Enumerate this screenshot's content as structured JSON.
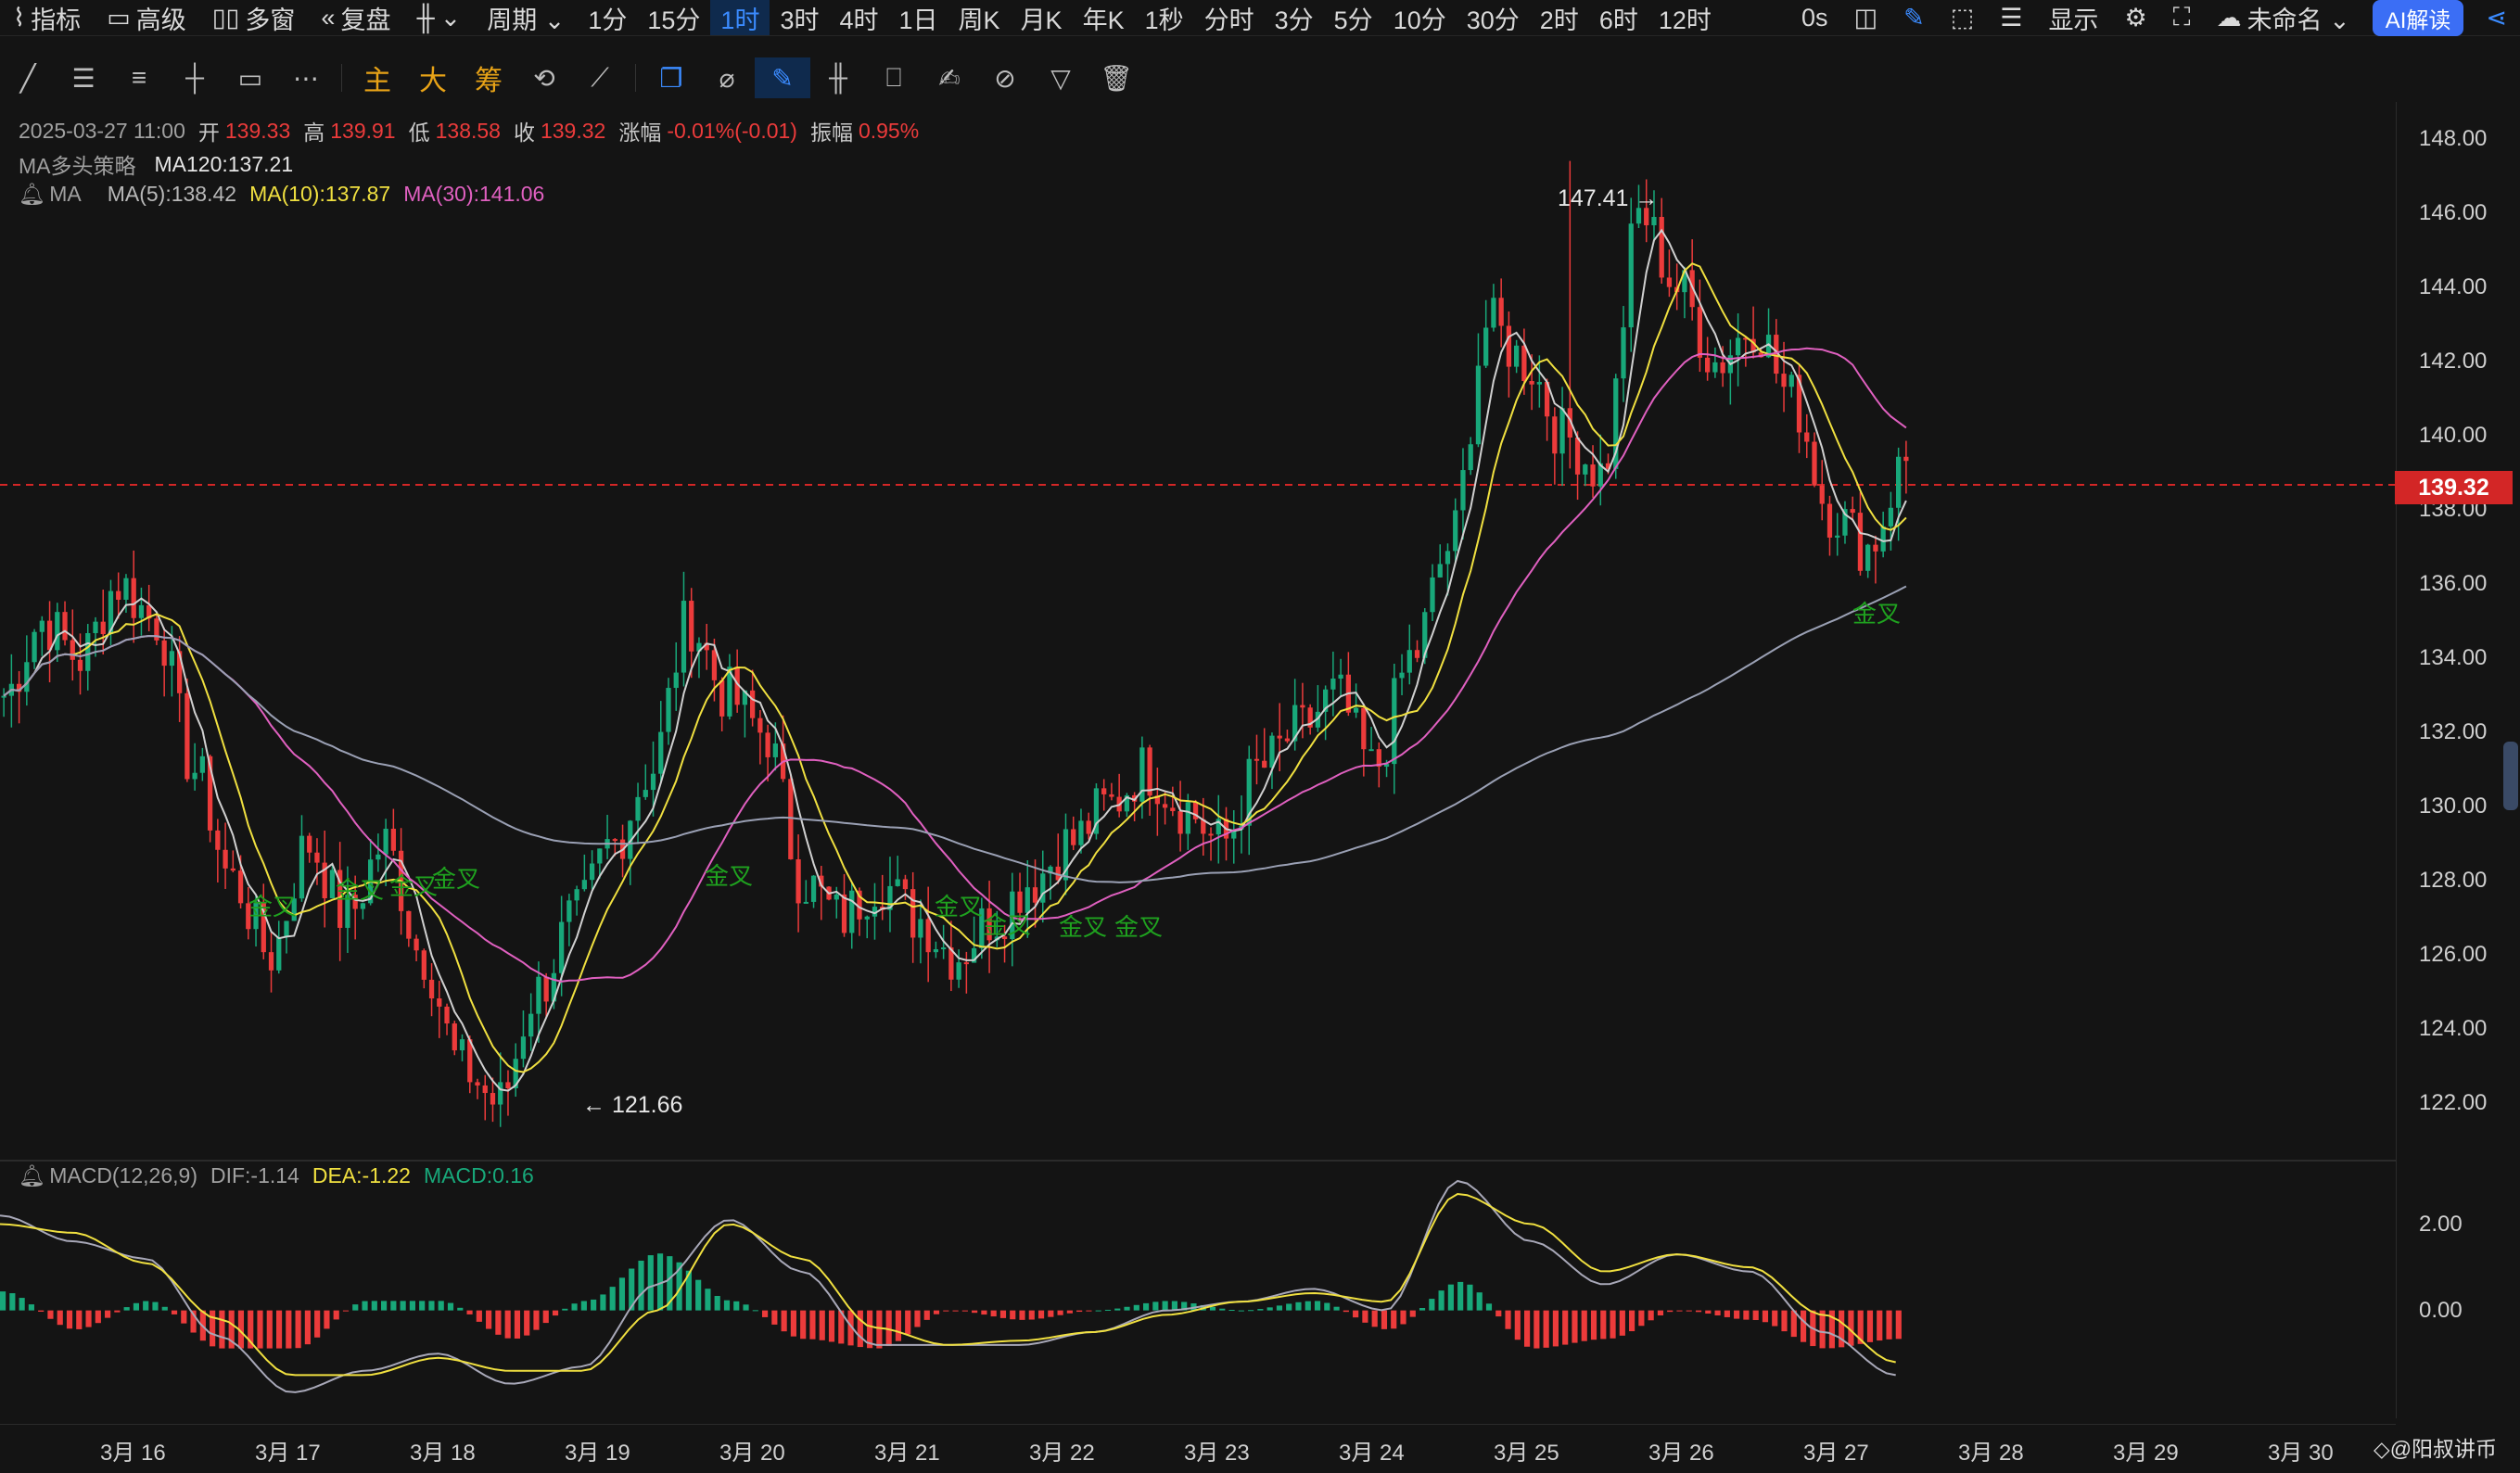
{
  "topbar": {
    "items": [
      {
        "icon": "indicator-icon",
        "glyph": "⌇",
        "label": "指标"
      },
      {
        "icon": "advanced-icon",
        "glyph": "▭",
        "label": "高级"
      },
      {
        "icon": "multi-window-icon",
        "glyph": "▯▯",
        "label": "多窗"
      },
      {
        "icon": "replay-icon",
        "glyph": "«",
        "label": "复盘"
      },
      {
        "icon": "candle-type-icon",
        "glyph": "╫",
        "label": "⌄"
      },
      {
        "icon": "period-icon",
        "glyph": "",
        "label": "周期 ⌄"
      }
    ],
    "periods": [
      "1分",
      "15分",
      "1时",
      "3时",
      "4时",
      "1日",
      "周K",
      "月K",
      "年K",
      "1秒",
      "分时",
      "3分",
      "5分",
      "10分",
      "30分",
      "2时",
      "6时",
      "12时"
    ],
    "active_period": "1时",
    "right": {
      "timer": "0s",
      "display_label": "显示",
      "layout_name": "未命名 ⌄",
      "ai_label": "AI解读"
    }
  },
  "legend": {
    "ohlc": {
      "date": "2025-03-27 11:00",
      "open_label": "开",
      "open": "139.33",
      "high_label": "高",
      "high": "139.91",
      "low_label": "低",
      "low": "138.58",
      "close_label": "收",
      "close": "139.32",
      "change_label": "涨幅",
      "change": "-0.01%(-0.01)",
      "amp_label": "振幅",
      "amp": "0.95%"
    },
    "strategy": {
      "name": "MA多头策略",
      "ma120": "MA120:137.21"
    },
    "ma": {
      "name": "MA",
      "ma5": "MA(5):138.42",
      "ma10": "MA(10):137.87",
      "ma30": "MA(30):141.06"
    },
    "macd": {
      "name": "MACD(12,26,9)",
      "dif": "DIF:-1.14",
      "dea": "DEA:-1.22",
      "macd": "MACD:0.16"
    }
  },
  "colors": {
    "up": "#ec3b3b",
    "down": "#18a87a",
    "ma5": "#d0d0d0",
    "ma10": "#f0e040",
    "ma30": "#e060c0",
    "ma120": "#9aa0b4",
    "accent": "#3b8bff",
    "price_tag": "#d32626",
    "cross": "#1fa21f"
  },
  "price_axis": {
    "labels": [
      "148.00",
      "146.00",
      "144.00",
      "142.00",
      "140.00",
      "138.00",
      "136.00",
      "134.00",
      "132.00",
      "130.00",
      "128.00",
      "126.00",
      "124.00",
      "122.00"
    ],
    "current": "139.32"
  },
  "macd_axis": {
    "labels": [
      "2.00",
      "0.00"
    ]
  },
  "date_axis": {
    "labels": [
      "3月 16",
      "3月 17",
      "3月 18",
      "3月 19",
      "3月 20",
      "3月 21",
      "3月 22",
      "3月 23",
      "3月 24",
      "3月 25",
      "3月 26",
      "3月 27",
      "3月 28",
      "3月 29",
      "3月 30"
    ]
  },
  "annotations": {
    "high": "147.41 →",
    "low": "← 121.66"
  },
  "crosses": {
    "label": "金叉"
  },
  "watermark": "◇@阳叔讲币",
  "chart_data": {
    "type": "candlestick",
    "timeframe": "1h",
    "ylim": [
      121,
      149
    ],
    "macd_ylim": [
      -2.5,
      3.3
    ],
    "price_anchors": [
      133,
      135,
      134,
      136,
      135,
      131,
      128,
      126,
      129,
      127,
      129,
      126,
      123,
      122,
      125,
      127,
      129,
      131,
      135,
      133,
      132,
      128,
      127,
      128,
      127,
      126,
      127,
      128,
      129,
      130,
      131,
      130,
      129,
      131,
      132,
      133,
      131,
      134,
      137,
      143,
      142,
      140,
      139,
      146,
      144,
      142,
      143,
      141,
      138,
      137,
      139.3
    ],
    "ma_lines": {
      "MA(5)": 138.42,
      "MA(10)": 137.87,
      "MA(30)": 141.06,
      "MA120": 137.21
    },
    "extremes": {
      "high": 147.41,
      "low": 121.66
    },
    "macd_dif_anchors": [
      2.2,
      1.6,
      1.2,
      -0.6,
      -1.9,
      -1.4,
      -1.0,
      -1.7,
      -1.3,
      0.6,
      2.1,
      0.9,
      -0.8,
      -0.8,
      -0.8,
      -0.5,
      0.0,
      0.2,
      0.5,
      0.0,
      3.0,
      1.6,
      0.6,
      1.3,
      0.9,
      -0.5,
      -1.5
    ],
    "macd_dea_anchors": [
      2.0,
      1.8,
      1.1,
      -0.2,
      -1.5,
      -1.5,
      -1.1,
      -1.4,
      -1.4,
      0.0,
      2.0,
      1.2,
      -0.4,
      -0.8,
      -0.7,
      -0.5,
      -0.1,
      0.2,
      0.4,
      0.2,
      2.7,
      2.0,
      0.9,
      1.3,
      1.0,
      -0.1,
      -1.2
    ]
  }
}
